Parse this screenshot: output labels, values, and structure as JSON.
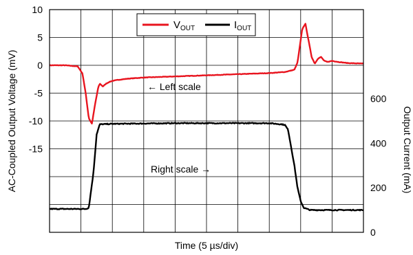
{
  "chart_data": {
    "type": "line",
    "xlabel": "Time (5 µs/div)",
    "ylabel_left": "AC-Coupled Output Voltage (mV)",
    "ylabel_right": "Output Current (mA)",
    "left_axis": {
      "ylim": [
        -30,
        10
      ],
      "ticks": [
        10,
        5,
        0,
        -5,
        -10,
        -15
      ],
      "tick_labels": [
        "10",
        "5",
        "0",
        "-5",
        "-10",
        "-15"
      ]
    },
    "right_axis": {
      "ylim": [
        0,
        1000
      ],
      "ticks": [
        600,
        400,
        200,
        0
      ],
      "tick_labels": [
        "600",
        "400",
        "200",
        "0"
      ]
    },
    "x_divisions": 10,
    "grid": true,
    "legend": {
      "placement": "top-center",
      "entries": [
        {
          "main": "V",
          "sub": "OUT",
          "color": "#e8141e",
          "axis": "left"
        },
        {
          "main": "I",
          "sub": "OUT",
          "color": "#000000",
          "axis": "right"
        }
      ]
    },
    "annotations": [
      "← Left scale",
      "Right scale →"
    ],
    "series": [
      {
        "name": "VOUT",
        "color": "#e8141e",
        "axis": "left",
        "x": [
          0,
          0.5,
          0.9,
          1.05,
          1.15,
          1.25,
          1.35,
          1.45,
          1.55,
          1.6,
          1.7,
          1.8,
          1.9,
          2.0,
          2.2,
          2.5,
          3.0,
          4.0,
          5.0,
          6.0,
          7.0,
          7.5,
          7.8,
          7.9,
          7.95,
          8.05,
          8.15,
          8.25,
          8.35,
          8.45,
          8.55,
          8.65,
          8.75,
          8.85,
          9.0,
          9.2,
          9.5,
          10.0
        ],
        "values": [
          0,
          0,
          -0.2,
          -1.5,
          -5,
          -9.5,
          -10.5,
          -7,
          -4,
          -3.3,
          -3.8,
          -3.3,
          -3.0,
          -2.8,
          -2.6,
          -2.4,
          -2.2,
          -2.0,
          -1.8,
          -1.6,
          -1.4,
          -1.2,
          -0.8,
          0.5,
          2.5,
          6.5,
          7.5,
          4.5,
          1.5,
          0.3,
          1.2,
          1.5,
          0.8,
          0.6,
          0.8,
          0.6,
          0.4,
          0.3
        ]
      },
      {
        "name": "IOUT",
        "color": "#000000",
        "axis": "right",
        "x": [
          0,
          1.15,
          1.25,
          1.4,
          1.5,
          1.6,
          2.0,
          4.0,
          6.0,
          7.0,
          7.4,
          7.5,
          7.6,
          7.8,
          7.9,
          8.0,
          8.1,
          8.3,
          10.0
        ],
        "values": [
          105,
          105,
          110,
          270,
          440,
          485,
          487,
          490,
          490,
          490,
          485,
          482,
          460,
          300,
          200,
          140,
          110,
          100,
          100
        ]
      }
    ]
  }
}
